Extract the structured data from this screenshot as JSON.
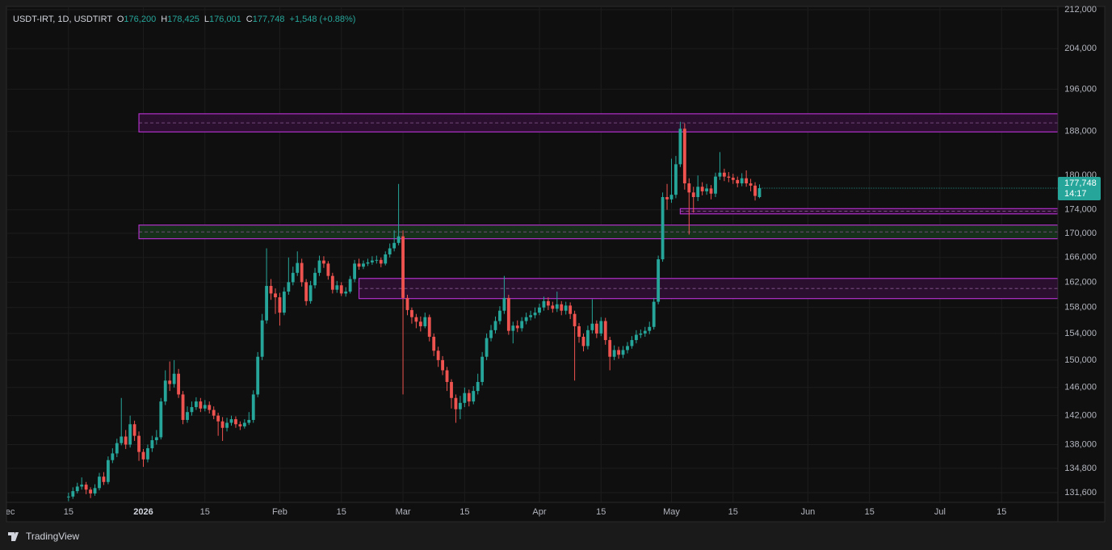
{
  "chart_data": {
    "type": "candlestick",
    "legend": {
      "symbol": "USDT-IRT, 1D, USDTIRT",
      "o_label": "O",
      "o": "176,200",
      "h_label": "H",
      "h": "178,425",
      "l_label": "L",
      "l": "176,001",
      "c_label": "C",
      "c": "177,748",
      "change": "+1,548 (+0.88%)"
    },
    "price_label": "177,748",
    "countdown": "14:17",
    "log_scale": true,
    "grid": true,
    "up_color": "#26a69a",
    "down_color": "#ef5350",
    "ylim": [
      130350,
      212680
    ],
    "yticks": [
      {
        "value": 131600,
        "label": "131,600"
      },
      {
        "value": 134800,
        "label": "134,800"
      },
      {
        "value": 138000,
        "label": "138,000"
      },
      {
        "value": 142000,
        "label": "142,000"
      },
      {
        "value": 146000,
        "label": "146,000"
      },
      {
        "value": 150000,
        "label": "150,000"
      },
      {
        "value": 154000,
        "label": "154,000"
      },
      {
        "value": 158000,
        "label": "158,000"
      },
      {
        "value": 162000,
        "label": "162,000"
      },
      {
        "value": 166000,
        "label": "166,000"
      },
      {
        "value": 170000,
        "label": "170,000"
      },
      {
        "value": 174000,
        "label": "174,000"
      },
      {
        "value": 180000,
        "label": "180,000"
      },
      {
        "value": 188000,
        "label": "188,000"
      },
      {
        "value": 196000,
        "label": "196,000"
      },
      {
        "value": 204000,
        "label": "204,000"
      },
      {
        "value": 212000,
        "label": "212,000"
      }
    ],
    "xlim": [
      -14.1,
      224.8
    ],
    "xticks": [
      {
        "value": -14,
        "label": "Dec"
      },
      {
        "value": 0,
        "label": "15"
      },
      {
        "value": 17,
        "label": "2026"
      },
      {
        "value": 31,
        "label": "15"
      },
      {
        "value": 48,
        "label": "Feb"
      },
      {
        "value": 62,
        "label": "15"
      },
      {
        "value": 76,
        "label": "Mar"
      },
      {
        "value": 90,
        "label": "15"
      },
      {
        "value": 107,
        "label": "Apr"
      },
      {
        "value": 121,
        "label": "15"
      },
      {
        "value": 137,
        "label": "May"
      },
      {
        "value": 151,
        "label": "15"
      },
      {
        "value": 168,
        "label": "Jun"
      },
      {
        "value": 182,
        "label": "15"
      },
      {
        "value": 198,
        "label": "Jul"
      },
      {
        "value": 212,
        "label": "15"
      }
    ],
    "zones": [
      {
        "from": 16,
        "low": 187900,
        "high": 191300,
        "fill": "#2a0f2e"
      },
      {
        "from": 16,
        "low": 169100,
        "high": 171400,
        "fill": "#17301c"
      },
      {
        "from": 66,
        "low": 159400,
        "high": 162600,
        "fill": "#2a0f2e"
      },
      {
        "from": 139,
        "low": 173300,
        "high": 174200,
        "fill": "#2a0f2e"
      }
    ],
    "open": [
      131000,
      131100,
      131800,
      132400,
      132650,
      132000,
      131500,
      132200,
      133700,
      133000,
      135900,
      136800,
      138200,
      139100,
      138000,
      140800,
      139200,
      137000,
      136000,
      137500,
      138600,
      139000,
      144000,
      147000,
      146500,
      148000,
      145000,
      141400,
      142500,
      143200,
      144000,
      143000,
      143500,
      142800,
      142000,
      141200,
      140300,
      141000,
      141500,
      140800,
      140500,
      141000,
      141400,
      145000,
      150500,
      156000,
      161400,
      160200,
      159600,
      157200,
      160500,
      162000,
      163500,
      165100,
      162000,
      159000,
      161500,
      163500,
      165500,
      165000,
      163000,
      160800,
      161500,
      160200,
      160500,
      162500,
      165000,
      164500,
      165000,
      165200,
      165500,
      165600,
      165000,
      166500,
      167500,
      168400,
      169500,
      159500,
      157600,
      156500,
      155800,
      155100,
      156500,
      153500,
      151400,
      150000,
      148500,
      146800,
      144500,
      142900,
      143800,
      145200,
      144000,
      145500,
      146800,
      150500,
      153300,
      154500,
      155900,
      157500,
      159500,
      154400,
      155200,
      154800,
      155900,
      156500,
      156800,
      157200,
      158000,
      159000,
      158300,
      157800,
      158500,
      157500,
      158300,
      157000,
      155100,
      153500,
      152100,
      154500,
      155500,
      154000,
      155900,
      153000,
      150500,
      151500,
      150800,
      151500,
      152100,
      153000,
      153800,
      154000,
      154400,
      155000,
      158900,
      165700,
      176200,
      175800,
      176600,
      182000,
      188500,
      178600,
      177000,
      176200,
      178000,
      177200,
      177700,
      176800,
      179800,
      180500,
      179800,
      179600,
      179200,
      178600,
      179500,
      178600,
      178200,
      176200
    ],
    "high": [
      131600,
      132300,
      132900,
      133600,
      133000,
      132300,
      132700,
      134200,
      134300,
      136400,
      137500,
      138800,
      144500,
      140000,
      142000,
      141300,
      139800,
      137400,
      138000,
      139200,
      140000,
      144500,
      148500,
      149800,
      150000,
      148700,
      145500,
      143300,
      144000,
      144600,
      144500,
      144200,
      144000,
      143300,
      142400,
      141800,
      141700,
      142000,
      141900,
      141200,
      141500,
      142500,
      145600,
      151200,
      157000,
      167500,
      162500,
      161000,
      160300,
      161200,
      166000,
      164500,
      167000,
      165800,
      162500,
      162200,
      164300,
      166300,
      166200,
      165400,
      163500,
      162200,
      162000,
      161200,
      163000,
      165600,
      165800,
      165500,
      165800,
      166200,
      166300,
      166000,
      167000,
      168300,
      170500,
      178500,
      170500,
      160000,
      158000,
      157000,
      156600,
      157200,
      156900,
      154000,
      152000,
      150600,
      149000,
      147200,
      145000,
      144800,
      146000,
      145700,
      146200,
      148000,
      151200,
      154000,
      155300,
      156600,
      158200,
      163000,
      160000,
      155800,
      156000,
      156500,
      157200,
      157500,
      158000,
      158600,
      159700,
      159600,
      158900,
      160500,
      159000,
      158900,
      158800,
      157500,
      155600,
      154000,
      155200,
      159300,
      156000,
      156500,
      156400,
      153500,
      152200,
      152000,
      152100,
      152700,
      153600,
      154500,
      154600,
      155000,
      155800,
      159500,
      166300,
      177000,
      178500,
      183000,
      183500,
      189800,
      189500,
      179500,
      178000,
      180000,
      178800,
      178500,
      178300,
      180500,
      184200,
      181200,
      180600,
      180300,
      179800,
      180400,
      180900,
      179400,
      178800,
      178425
    ],
    "low": [
      130500,
      130800,
      131500,
      132000,
      131400,
      130900,
      131200,
      131900,
      132600,
      132700,
      135500,
      136300,
      137900,
      137400,
      137600,
      138500,
      135800,
      135000,
      135600,
      137000,
      138000,
      138700,
      143500,
      145500,
      146000,
      144500,
      140800,
      141000,
      142000,
      142800,
      142500,
      142600,
      142300,
      141500,
      139200,
      138500,
      139800,
      140600,
      140300,
      140000,
      140200,
      140700,
      141000,
      144600,
      150000,
      155500,
      159200,
      157000,
      155200,
      156800,
      160000,
      161500,
      163000,
      161300,
      158300,
      158600,
      161000,
      163000,
      164300,
      162400,
      160200,
      160300,
      159800,
      159700,
      160200,
      162000,
      164000,
      164100,
      164600,
      164800,
      165000,
      164400,
      164700,
      166000,
      167000,
      168000,
      145000,
      156800,
      155500,
      154800,
      154300,
      154800,
      152800,
      150600,
      149000,
      147800,
      145500,
      143000,
      141000,
      141500,
      143200,
      143300,
      143600,
      145000,
      146300,
      150000,
      152800,
      154000,
      155400,
      157000,
      153800,
      152500,
      154200,
      154300,
      155400,
      156000,
      156300,
      156800,
      157500,
      157600,
      157200,
      157300,
      156800,
      156900,
      156200,
      147000,
      152600,
      151300,
      151600,
      154000,
      153300,
      153600,
      152300,
      148500,
      150000,
      150200,
      150300,
      151000,
      151700,
      152500,
      153300,
      153500,
      153900,
      154600,
      158500,
      165300,
      174000,
      175200,
      176000,
      181500,
      177500,
      169800,
      173500,
      175500,
      176500,
      176600,
      175800,
      176200,
      179200,
      179000,
      178800,
      178500,
      177900,
      178100,
      178000,
      177200,
      175600,
      176001
    ],
    "close": [
      131100,
      131800,
      132400,
      132650,
      132000,
      131500,
      132200,
      133700,
      133000,
      135900,
      136800,
      138200,
      139100,
      138000,
      140800,
      139200,
      137000,
      136000,
      137500,
      138600,
      139000,
      144000,
      147000,
      146500,
      148000,
      145000,
      141400,
      142500,
      143200,
      144000,
      143000,
      143500,
      142800,
      142000,
      141200,
      140300,
      141000,
      141500,
      140800,
      140500,
      141000,
      141400,
      145000,
      150500,
      156000,
      161400,
      160200,
      159600,
      157200,
      160500,
      162000,
      163500,
      165100,
      162000,
      159000,
      161500,
      163500,
      165500,
      165000,
      163000,
      160800,
      161500,
      160200,
      160500,
      162500,
      165000,
      164500,
      165000,
      165200,
      165500,
      165600,
      165000,
      166500,
      167500,
      168400,
      169500,
      159500,
      157600,
      156500,
      155800,
      155100,
      156500,
      153500,
      151400,
      150000,
      148500,
      146800,
      144500,
      142900,
      143800,
      145200,
      144000,
      145500,
      146800,
      150500,
      153300,
      154500,
      155900,
      157500,
      159500,
      154400,
      155200,
      154800,
      155900,
      156500,
      156800,
      157200,
      158000,
      159000,
      158300,
      157800,
      158500,
      157500,
      158300,
      157000,
      155100,
      153500,
      152100,
      154500,
      155500,
      154000,
      155900,
      153000,
      150500,
      151500,
      150800,
      151500,
      152100,
      153000,
      153800,
      154000,
      154400,
      155000,
      158900,
      165700,
      176200,
      175800,
      176600,
      182000,
      188500,
      178600,
      177000,
      176200,
      178000,
      177200,
      177700,
      176800,
      179800,
      180500,
      179800,
      179600,
      179200,
      178600,
      179500,
      178600,
      178200,
      176400,
      177748
    ]
  },
  "footer": {
    "brand": "TradingView"
  }
}
